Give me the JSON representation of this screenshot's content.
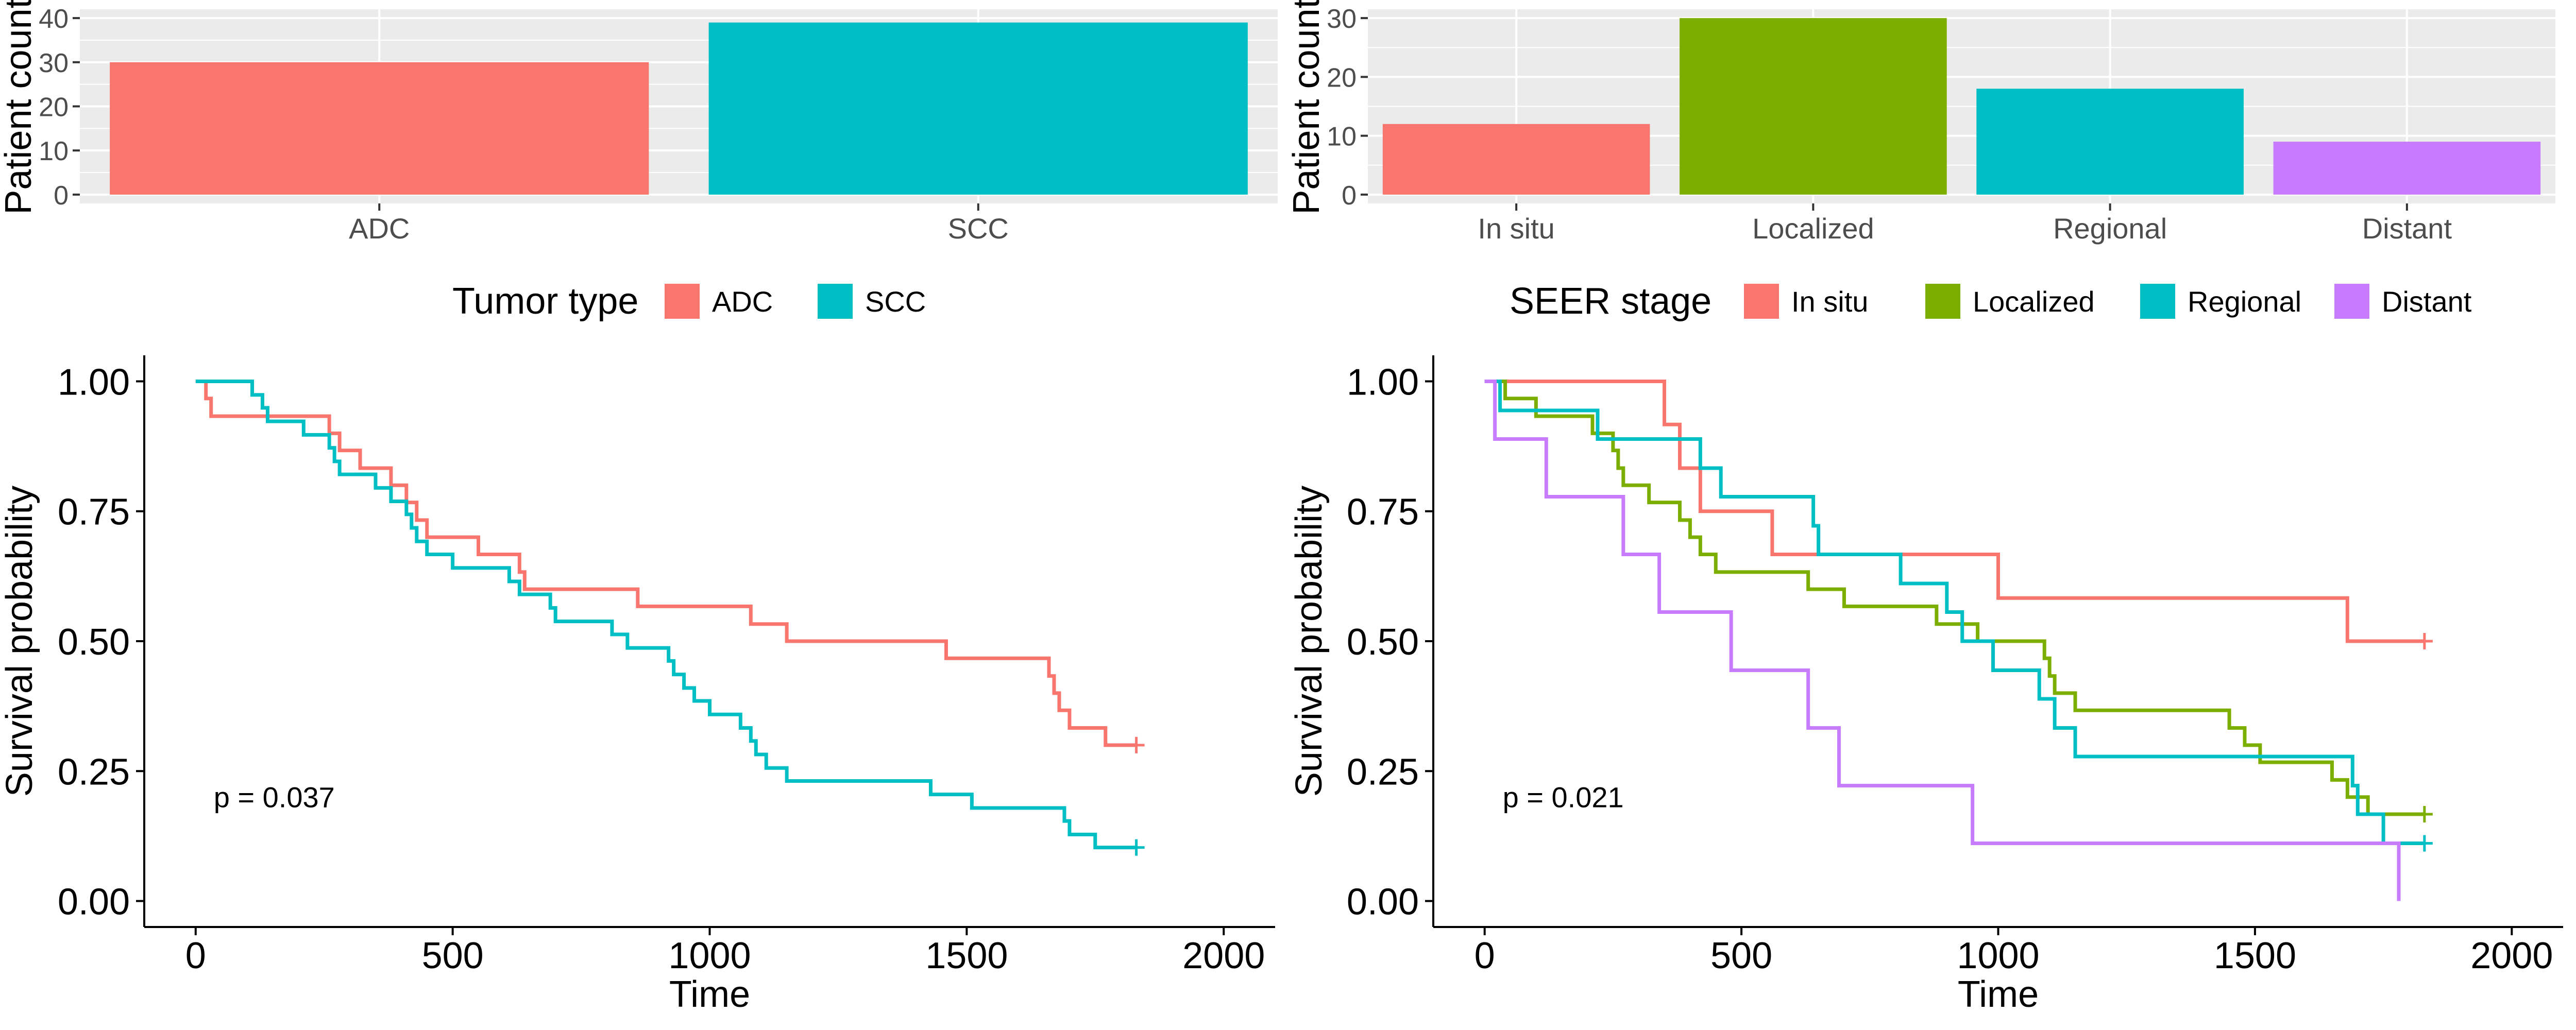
{
  "chart_data": [
    {
      "type": "bar",
      "ylabel": "Patient count",
      "xlabel": "",
      "categories": [
        "ADC",
        "SCC"
      ],
      "values": [
        30,
        39
      ],
      "colors": [
        "#F8766D",
        "#00BFC4"
      ],
      "ylim": [
        0,
        40
      ],
      "yticks": [
        "0",
        "10",
        "20",
        "30",
        "40"
      ],
      "grid": true,
      "legend": {
        "title": "Tumor type",
        "position": "bottom",
        "entries": [
          "ADC",
          "SCC"
        ]
      }
    },
    {
      "type": "bar",
      "ylabel": "Patient count",
      "xlabel": "",
      "categories": [
        "In situ",
        "Localized",
        "Regional",
        "Distant"
      ],
      "values": [
        12,
        30,
        18,
        9
      ],
      "colors": [
        "#F8766D",
        "#7CAE00",
        "#00BFC4",
        "#C77CFF"
      ],
      "ylim": [
        0,
        30
      ],
      "yticks": [
        "0",
        "10",
        "20",
        "30"
      ],
      "grid": true,
      "legend": {
        "title": "SEER stage",
        "position": "bottom",
        "entries": [
          "In situ",
          "Localized",
          "Regional",
          "Distant"
        ]
      }
    },
    {
      "type": "line",
      "subtype": "step",
      "xlabel": "Time",
      "ylabel": "Survival probability",
      "xlim": [
        0,
        2000
      ],
      "ylim": [
        0,
        1
      ],
      "xticks": [
        "0",
        "500",
        "1000",
        "1500",
        "2000"
      ],
      "yticks": [
        "0.00",
        "0.25",
        "0.50",
        "0.75",
        "1.00"
      ],
      "annotation": "p = 0.037",
      "series": [
        {
          "name": "ADC",
          "color": "#F8766D",
          "steps": [
            [
              0,
              1.0
            ],
            [
              20,
              0.967
            ],
            [
              30,
              0.933
            ],
            [
              260,
              0.9
            ],
            [
              280,
              0.867
            ],
            [
              320,
              0.833
            ],
            [
              380,
              0.8
            ],
            [
              410,
              0.767
            ],
            [
              430,
              0.733
            ],
            [
              450,
              0.7
            ],
            [
              550,
              0.667
            ],
            [
              630,
              0.633
            ],
            [
              640,
              0.6
            ],
            [
              860,
              0.567
            ],
            [
              1080,
              0.533
            ],
            [
              1150,
              0.5
            ],
            [
              1460,
              0.467
            ],
            [
              1660,
              0.433
            ],
            [
              1670,
              0.4
            ],
            [
              1680,
              0.367
            ],
            [
              1700,
              0.333
            ],
            [
              1770,
              0.3
            ],
            [
              1830,
              0.3
            ]
          ],
          "censor": [
            [
              1830,
              0.3
            ]
          ]
        },
        {
          "name": "SCC",
          "color": "#00BFC4",
          "steps": [
            [
              0,
              1.0
            ],
            [
              110,
              0.974
            ],
            [
              130,
              0.949
            ],
            [
              140,
              0.923
            ],
            [
              210,
              0.897
            ],
            [
              260,
              0.872
            ],
            [
              270,
              0.846
            ],
            [
              280,
              0.821
            ],
            [
              350,
              0.795
            ],
            [
              380,
              0.769
            ],
            [
              410,
              0.744
            ],
            [
              420,
              0.718
            ],
            [
              430,
              0.692
            ],
            [
              450,
              0.667
            ],
            [
              500,
              0.641
            ],
            [
              610,
              0.615
            ],
            [
              630,
              0.59
            ],
            [
              690,
              0.564
            ],
            [
              700,
              0.538
            ],
            [
              810,
              0.513
            ],
            [
              840,
              0.487
            ],
            [
              920,
              0.462
            ],
            [
              930,
              0.436
            ],
            [
              950,
              0.41
            ],
            [
              970,
              0.385
            ],
            [
              1000,
              0.359
            ],
            [
              1060,
              0.333
            ],
            [
              1080,
              0.308
            ],
            [
              1090,
              0.282
            ],
            [
              1110,
              0.256
            ],
            [
              1150,
              0.231
            ],
            [
              1430,
              0.205
            ],
            [
              1510,
              0.179
            ],
            [
              1690,
              0.154
            ],
            [
              1700,
              0.128
            ],
            [
              1750,
              0.103
            ],
            [
              1830,
              0.103
            ]
          ],
          "censor": [
            [
              1830,
              0.103
            ]
          ]
        }
      ]
    },
    {
      "type": "line",
      "subtype": "step",
      "xlabel": "Time",
      "ylabel": "Survival probability",
      "xlim": [
        0,
        2000
      ],
      "ylim": [
        0,
        1
      ],
      "xticks": [
        "0",
        "500",
        "1000",
        "1500",
        "2000"
      ],
      "yticks": [
        "0.00",
        "0.25",
        "0.50",
        "0.75",
        "1.00"
      ],
      "annotation": "p = 0.021",
      "series": [
        {
          "name": "In situ",
          "color": "#F8766D",
          "steps": [
            [
              0,
              1.0
            ],
            [
              350,
              0.917
            ],
            [
              380,
              0.833
            ],
            [
              420,
              0.75
            ],
            [
              560,
              0.667
            ],
            [
              1000,
              0.583
            ],
            [
              1680,
              0.5
            ],
            [
              1830,
              0.5
            ]
          ],
          "censor": [
            [
              1830,
              0.5
            ]
          ]
        },
        {
          "name": "Localized",
          "color": "#7CAE00",
          "steps": [
            [
              0,
              1.0
            ],
            [
              40,
              0.967
            ],
            [
              100,
              0.933
            ],
            [
              210,
              0.9
            ],
            [
              250,
              0.867
            ],
            [
              260,
              0.833
            ],
            [
              270,
              0.8
            ],
            [
              320,
              0.767
            ],
            [
              380,
              0.733
            ],
            [
              400,
              0.7
            ],
            [
              420,
              0.667
            ],
            [
              450,
              0.633
            ],
            [
              630,
              0.6
            ],
            [
              700,
              0.567
            ],
            [
              880,
              0.533
            ],
            [
              960,
              0.5
            ],
            [
              1090,
              0.467
            ],
            [
              1100,
              0.433
            ],
            [
              1110,
              0.4
            ],
            [
              1150,
              0.367
            ],
            [
              1450,
              0.333
            ],
            [
              1480,
              0.3
            ],
            [
              1510,
              0.267
            ],
            [
              1650,
              0.233
            ],
            [
              1680,
              0.2
            ],
            [
              1720,
              0.167
            ],
            [
              1830,
              0.167
            ]
          ],
          "censor": [
            [
              1830,
              0.167
            ]
          ]
        },
        {
          "name": "Regional",
          "color": "#00BFC4",
          "steps": [
            [
              0,
              1.0
            ],
            [
              30,
              0.944
            ],
            [
              220,
              0.889
            ],
            [
              420,
              0.833
            ],
            [
              460,
              0.778
            ],
            [
              640,
              0.722
            ],
            [
              650,
              0.667
            ],
            [
              810,
              0.611
            ],
            [
              900,
              0.556
            ],
            [
              930,
              0.5
            ],
            [
              990,
              0.444
            ],
            [
              1080,
              0.389
            ],
            [
              1110,
              0.333
            ],
            [
              1150,
              0.278
            ],
            [
              1690,
              0.222
            ],
            [
              1700,
              0.167
            ],
            [
              1750,
              0.111
            ],
            [
              1830,
              0.111
            ]
          ],
          "censor": [
            [
              1830,
              0.111
            ]
          ]
        },
        {
          "name": "Distant",
          "color": "#C77CFF",
          "steps": [
            [
              0,
              1.0
            ],
            [
              20,
              0.889
            ],
            [
              120,
              0.778
            ],
            [
              270,
              0.667
            ],
            [
              340,
              0.556
            ],
            [
              480,
              0.444
            ],
            [
              630,
              0.333
            ],
            [
              690,
              0.222
            ],
            [
              950,
              0.111
            ],
            [
              1780,
              0.0
            ]
          ],
          "censor": []
        }
      ]
    }
  ]
}
